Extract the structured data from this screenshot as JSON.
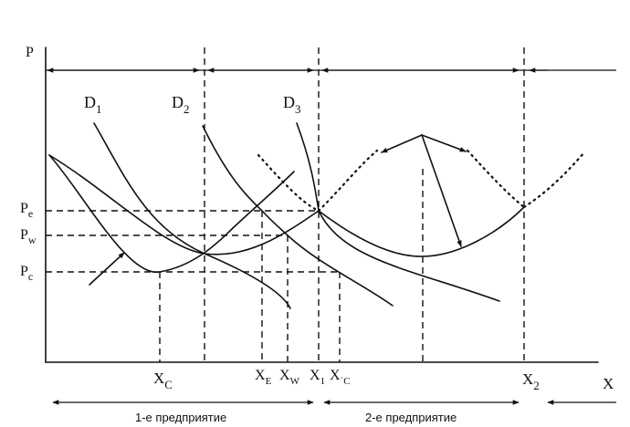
{
  "axes": {
    "y_label": "P",
    "x_label": "X"
  },
  "prices": [
    {
      "letter": "P",
      "sub": "e"
    },
    {
      "letter": "P",
      "sub": "w"
    },
    {
      "letter": "P",
      "sub": "c"
    }
  ],
  "quantities": [
    {
      "letter": "X",
      "sub": "C"
    },
    {
      "letter": "X",
      "sub": "E"
    },
    {
      "letter": "X",
      "sub": "W"
    },
    {
      "letter": "X",
      "sub": "1"
    },
    {
      "letter": "X",
      "sub": "`C"
    },
    {
      "letter": "X",
      "sub": "2"
    }
  ],
  "demand_curves": [
    {
      "letter": "D",
      "sub": "1"
    },
    {
      "letter": "D",
      "sub": "2"
    },
    {
      "letter": "D",
      "sub": "3"
    }
  ],
  "enterprises": {
    "first": "1-е предприятие",
    "second": "2-е предприятие"
  }
}
